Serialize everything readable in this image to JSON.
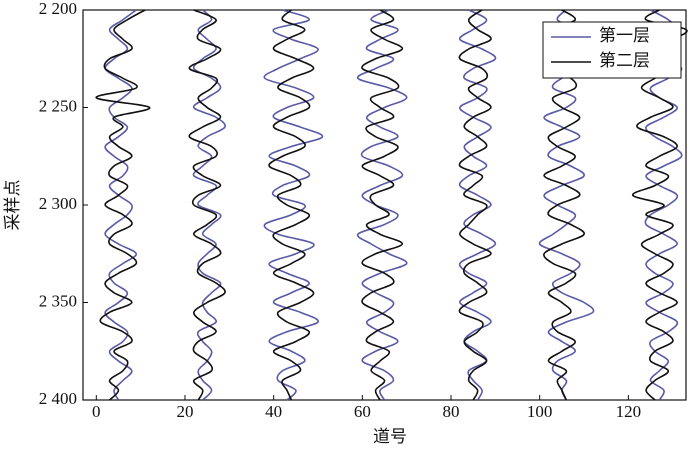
{
  "chart_data": {
    "type": "line",
    "xlabel": "道号",
    "ylabel": "采样点",
    "xlim": [
      -3,
      133
    ],
    "ylim": [
      2400,
      2200
    ],
    "xticks": [
      0,
      20,
      40,
      60,
      80,
      100,
      120
    ],
    "yticks": [
      {
        "value": 2200,
        "label": "2 200"
      },
      {
        "value": 2250,
        "label": "2 250"
      },
      {
        "value": 2300,
        "label": "2 300"
      },
      {
        "value": 2350,
        "label": "2 350"
      },
      {
        "value": 2400,
        "label": "2 400"
      }
    ],
    "legend": "upper right",
    "samples": [
      2200,
      2205,
      2210,
      2215,
      2220,
      2225,
      2230,
      2235,
      2240,
      2245,
      2250,
      2255,
      2260,
      2265,
      2270,
      2275,
      2280,
      2285,
      2290,
      2295,
      2300,
      2305,
      2310,
      2315,
      2320,
      2325,
      2330,
      2335,
      2340,
      2345,
      2350,
      2355,
      2360,
      2365,
      2370,
      2375,
      2380,
      2385,
      2390,
      2395,
      2400
    ],
    "series": [
      {
        "name": "第一层",
        "color": "#5a5aa8",
        "traces": [
          [
            9,
            6,
            3,
            5,
            7,
            4,
            2,
            5,
            8,
            6,
            3,
            4,
            7,
            5,
            2,
            4,
            7,
            6,
            3,
            5,
            8,
            7,
            4,
            2,
            5,
            9,
            6,
            3,
            4,
            7,
            5,
            2,
            4,
            7,
            6,
            3,
            5,
            8,
            6,
            4,
            5
          ],
          [
            24,
            26,
            23,
            25,
            27,
            24,
            22,
            26,
            28,
            25,
            22,
            27,
            29,
            25,
            23,
            26,
            24,
            22,
            27,
            25,
            23,
            28,
            26,
            24,
            27,
            25,
            23,
            24,
            28,
            26,
            24,
            25,
            27,
            23,
            24,
            26,
            25,
            23,
            24,
            26,
            24
          ],
          [
            42,
            48,
            40,
            44,
            50,
            46,
            41,
            38,
            45,
            49,
            43,
            40,
            46,
            51,
            44,
            39,
            45,
            48,
            42,
            40,
            47,
            44,
            38,
            41,
            49,
            45,
            39,
            43,
            48,
            44,
            40,
            46,
            50,
            43,
            39,
            44,
            47,
            42,
            41,
            45,
            43
          ],
          [
            66,
            62,
            68,
            64,
            61,
            67,
            63,
            59,
            66,
            70,
            65,
            61,
            64,
            68,
            62,
            60,
            66,
            69,
            64,
            60,
            63,
            68,
            65,
            59,
            62,
            66,
            70,
            64,
            60,
            63,
            67,
            65,
            61,
            64,
            68,
            63,
            60,
            65,
            67,
            64,
            65
          ],
          [
            84,
            88,
            85,
            82,
            87,
            90,
            85,
            83,
            88,
            86,
            82,
            85,
            89,
            86,
            83,
            85,
            88,
            84,
            82,
            86,
            89,
            85,
            83,
            87,
            90,
            86,
            82,
            84,
            88,
            85,
            82,
            86,
            89,
            85,
            83,
            86,
            88,
            84,
            85,
            87,
            86
          ],
          [
            106,
            104,
            108,
            105,
            102,
            107,
            110,
            105,
            103,
            108,
            106,
            101,
            105,
            109,
            104,
            102,
            107,
            110,
            105,
            101,
            104,
            108,
            106,
            103,
            100,
            105,
            109,
            107,
            103,
            105,
            110,
            112,
            106,
            102,
            105,
            108,
            104,
            103,
            106,
            105,
            106
          ],
          [
            125,
            129,
            131,
            127,
            124,
            128,
            132,
            129,
            125,
            127,
            131,
            128,
            124,
            126,
            130,
            132,
            128,
            124,
            127,
            131,
            129,
            125,
            124,
            128,
            131,
            127,
            124,
            126,
            130,
            128,
            124,
            127,
            131,
            129,
            125,
            126,
            129,
            127,
            125,
            128,
            127
          ]
        ]
      },
      {
        "name": "第二层",
        "color": "#111111",
        "traces": [
          [
            11,
            7,
            4,
            6,
            8,
            3,
            2,
            6,
            9,
            0,
            12,
            4,
            6,
            3,
            5,
            8,
            4,
            3,
            7,
            5,
            2,
            6,
            8,
            4,
            3,
            7,
            9,
            5,
            2,
            4,
            8,
            3,
            1,
            6,
            8,
            4,
            7,
            6,
            3,
            5,
            3
          ],
          [
            22,
            27,
            24,
            23,
            28,
            25,
            21,
            27,
            26,
            23,
            25,
            28,
            24,
            21,
            26,
            27,
            22,
            24,
            28,
            23,
            22,
            27,
            25,
            22,
            26,
            28,
            24,
            23,
            27,
            29,
            25,
            22,
            24,
            27,
            23,
            22,
            25,
            26,
            22,
            24,
            23
          ],
          [
            44,
            42,
            47,
            43,
            40,
            45,
            49,
            44,
            41,
            46,
            48,
            43,
            40,
            45,
            47,
            42,
            39,
            44,
            46,
            41,
            43,
            48,
            45,
            40,
            42,
            47,
            44,
            40,
            45,
            49,
            46,
            41,
            43,
            48,
            45,
            40,
            44,
            46,
            42,
            43,
            44
          ],
          [
            64,
            67,
            62,
            65,
            69,
            63,
            60,
            66,
            68,
            62,
            64,
            67,
            61,
            63,
            68,
            65,
            60,
            64,
            67,
            62,
            63,
            66,
            61,
            64,
            69,
            63,
            60,
            65,
            67,
            62,
            60,
            64,
            67,
            63,
            61,
            66,
            64,
            62,
            65,
            63,
            64
          ],
          [
            87,
            84,
            86,
            89,
            84,
            82,
            87,
            88,
            84,
            86,
            89,
            85,
            83,
            86,
            88,
            84,
            82,
            87,
            85,
            83,
            88,
            86,
            84,
            82,
            85,
            89,
            84,
            83,
            86,
            88,
            84,
            82,
            87,
            86,
            83,
            85,
            88,
            85,
            84,
            86,
            85
          ],
          [
            105,
            108,
            103,
            106,
            109,
            104,
            102,
            107,
            108,
            103,
            105,
            109,
            106,
            102,
            104,
            108,
            105,
            101,
            106,
            109,
            104,
            102,
            107,
            110,
            105,
            101,
            103,
            108,
            106,
            102,
            105,
            107,
            103,
            104,
            108,
            105,
            102,
            106,
            104,
            105,
            106
          ],
          [
            127,
            124,
            133,
            130,
            125,
            128,
            130,
            126,
            123,
            127,
            130,
            125,
            122,
            128,
            131,
            127,
            124,
            129,
            126,
            121,
            128,
            124,
            130,
            127,
            123,
            126,
            130,
            128,
            124,
            127,
            131,
            127,
            124,
            128,
            130,
            126,
            125,
            129,
            126,
            124,
            126
          ]
        ]
      }
    ]
  }
}
